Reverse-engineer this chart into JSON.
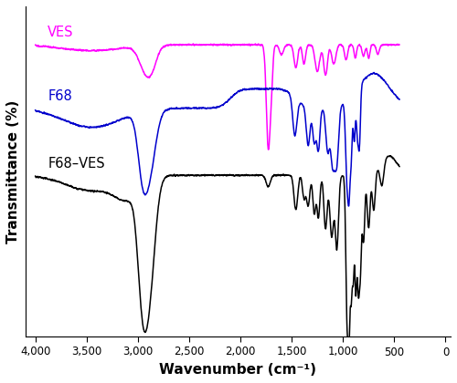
{
  "xlabel": "Wavenumber (cm⁻¹)",
  "ylabel": "Transmittance (%)",
  "xtick_labels": [
    "4,000",
    "3,500",
    "3,000",
    "2,500",
    "2,000",
    "1,500",
    "1,000",
    "500",
    "0"
  ],
  "colors": {
    "VES": "#ff00ff",
    "F68": "#0000cc",
    "F68_VES": "#000000"
  },
  "labels": {
    "VES": "VES",
    "F68": "F68",
    "F68_VES": "F68–VES"
  },
  "background": "#ffffff",
  "linewidth": 1.1
}
